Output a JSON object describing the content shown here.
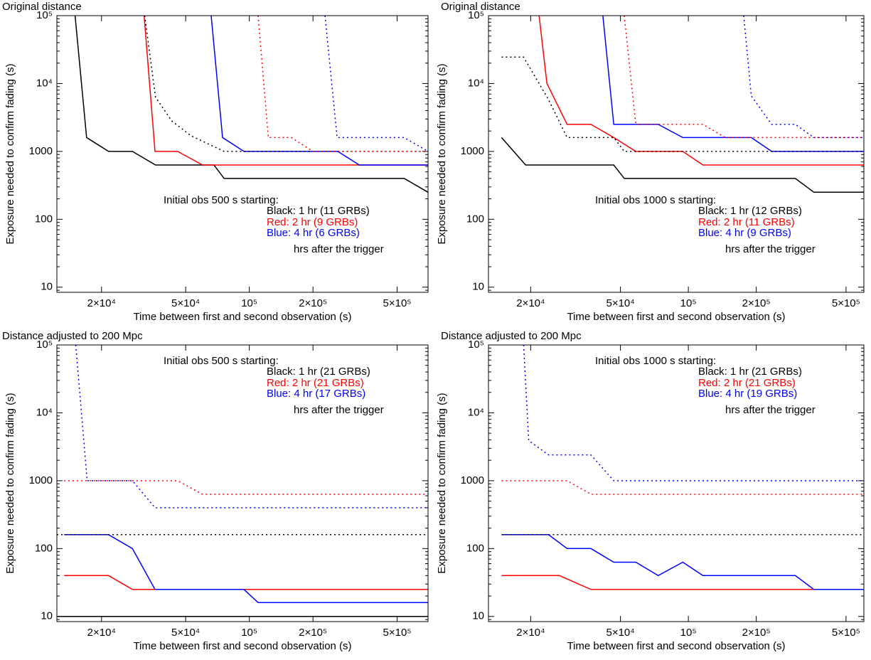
{
  "chart_data": [
    {
      "type": "line",
      "title": "Original distance",
      "xlabel": "Time between first and second observation (s)",
      "ylabel": "Exposure needed to confirm fading (s)",
      "log_x": true,
      "log_y": true,
      "xlim": [
        12300,
        700000
      ],
      "ylim": [
        8.4,
        100000
      ],
      "xticks": [
        {
          "value": 20000,
          "label": "2×10⁴"
        },
        {
          "value": 50000,
          "label": "5×10⁴"
        },
        {
          "value": 100000,
          "label": "10⁵"
        },
        {
          "value": 200000,
          "label": "2×10⁵"
        },
        {
          "value": 500000,
          "label": "5×10⁵"
        }
      ],
      "yticks": [
        10,
        100,
        1000,
        {
          "value": 10000,
          "label": "10⁴"
        },
        {
          "value": 100000,
          "label": "10⁵"
        }
      ],
      "annotation_position": "lower",
      "annotations": [
        {
          "text": "Initial obs 500 s starting:",
          "color": "#000000"
        },
        {
          "text": "Black: 1 hr (11 GRBs)",
          "color": "#000000"
        },
        {
          "text": "Red: 2 hr (9 GRBs)",
          "color": "#ff0000"
        },
        {
          "text": "Blue: 4 hr (6 GRBs)",
          "color": "#0000ff"
        },
        {
          "text": "hrs after the trigger",
          "color": "#000000"
        }
      ],
      "series": [
        {
          "color": "#000000",
          "style": "solid",
          "x": [
            15000,
            17000,
            21600,
            28000,
            36000,
            68000,
            76000,
            540000,
            700000
          ],
          "values": [
            100000,
            1600,
            1000,
            1000,
            630,
            630,
            400,
            400,
            250
          ]
        },
        {
          "color": "#ff0000",
          "style": "solid",
          "x": [
            31800,
            35800,
            45800,
            60100,
            700000
          ],
          "values": [
            100000,
            1000,
            1000,
            630,
            630
          ]
        },
        {
          "color": "#0000ff",
          "style": "solid",
          "x": [
            66000,
            74700,
            94300,
            262000,
            331000,
            700000
          ],
          "values": [
            100000,
            1600,
            1000,
            1000,
            630,
            630
          ]
        },
        {
          "color": "#000000",
          "style": "dotted",
          "x": [
            32000,
            36000,
            43000,
            53000,
            76000,
            700000
          ],
          "values": [
            100000,
            6300,
            2800,
            1700,
            1000,
            1000
          ]
        },
        {
          "color": "#ff0000",
          "style": "dotted",
          "x": [
            110000,
            123000,
            158000,
            200000,
            700000
          ],
          "values": [
            100000,
            1600,
            1600,
            1000,
            1000
          ]
        },
        {
          "color": "#0000ff",
          "style": "dotted",
          "x": [
            228000,
            260000,
            540000,
            700000
          ],
          "values": [
            100000,
            1600,
            1600,
            1000
          ]
        }
      ]
    },
    {
      "type": "line",
      "title": "Original distance",
      "xlabel": "Time between first and second observation (s)",
      "ylabel": "Exposure needed to confirm fading (s)",
      "log_x": true,
      "log_y": true,
      "xlim": [
        13000,
        600000
      ],
      "ylim": [
        8.4,
        100000
      ],
      "xticks": [
        {
          "value": 20000,
          "label": "2×10⁴"
        },
        {
          "value": 50000,
          "label": "5×10⁴"
        },
        {
          "value": 100000,
          "label": "10⁵"
        },
        {
          "value": 200000,
          "label": "2×10⁵"
        },
        {
          "value": 500000,
          "label": "5×10⁵"
        }
      ],
      "yticks": [
        10,
        100,
        1000,
        {
          "value": 10000,
          "label": "10⁴"
        },
        {
          "value": 100000,
          "label": "10⁵"
        }
      ],
      "annotation_position": "lower",
      "annotations": [
        {
          "text": "Initial obs 1000 s starting:",
          "color": "#000000"
        },
        {
          "text": "Black: 1 hr (12 GRBs)",
          "color": "#000000"
        },
        {
          "text": "Red: 2 hr (11 GRBs)",
          "color": "#ff0000"
        },
        {
          "text": "Blue: 4 hr (9 GRBs)",
          "color": "#0000ff"
        },
        {
          "text": "hrs after the trigger",
          "color": "#000000"
        }
      ],
      "series": [
        {
          "color": "#000000",
          "style": "solid",
          "x": [
            14860,
            19000,
            46700,
            52000,
            298000,
            360000,
            600000
          ],
          "values": [
            1600,
            630,
            630,
            400,
            400,
            250,
            250
          ]
        },
        {
          "color": "#ff0000",
          "style": "solid",
          "x": [
            21800,
            23600,
            29000,
            37000,
            46700,
            58500,
            94500,
            116000,
            600000
          ],
          "values": [
            100000,
            10000,
            2500,
            2500,
            1600,
            1000,
            1000,
            630,
            630
          ]
        },
        {
          "color": "#0000ff",
          "style": "solid",
          "x": [
            41800,
            46700,
            73500,
            94500,
            190000,
            234000,
            600000
          ],
          "values": [
            100000,
            2500,
            2500,
            1600,
            1600,
            1000,
            1000
          ]
        },
        {
          "color": "#000000",
          "style": "dotted",
          "x": [
            14860,
            18600,
            24000,
            29000,
            46700,
            52000,
            600000
          ],
          "values": [
            24500,
            24500,
            5800,
            1600,
            1600,
            1000,
            1000
          ]
        },
        {
          "color": "#ff0000",
          "style": "dotted",
          "x": [
            52000,
            58500,
            116000,
            146000,
            600000
          ],
          "values": [
            100000,
            2500,
            2500,
            1600,
            1600
          ]
        },
        {
          "color": "#0000ff",
          "style": "dotted",
          "x": [
            176000,
            190000,
            234000,
            298000,
            360000,
            600000
          ],
          "values": [
            100000,
            6600,
            2500,
            2500,
            1600,
            1600
          ]
        }
      ]
    },
    {
      "type": "line",
      "title": "Distance adjusted to 200 Mpc",
      "xlabel": "Time between first and second observation (s)",
      "ylabel": "Exposure needed to confirm fading (s)",
      "log_x": true,
      "log_y": true,
      "xlim": [
        12300,
        700000
      ],
      "ylim": [
        8.4,
        100000
      ],
      "xticks": [
        {
          "value": 20000,
          "label": "2×10⁴"
        },
        {
          "value": 50000,
          "label": "5×10⁴"
        },
        {
          "value": 100000,
          "label": "10⁵"
        },
        {
          "value": 200000,
          "label": "2×10⁵"
        },
        {
          "value": 500000,
          "label": "5×10⁵"
        }
      ],
      "yticks": [
        10,
        100,
        1000,
        {
          "value": 10000,
          "label": "10⁴"
        },
        {
          "value": 100000,
          "label": "10⁵"
        }
      ],
      "annotation_position": "upper",
      "annotations": [
        {
          "text": "Initial obs 500 s starting:",
          "color": "#000000"
        },
        {
          "text": "Black: 1 hr (21 GRBs)",
          "color": "#000000"
        },
        {
          "text": "Red: 2 hr (21 GRBs)",
          "color": "#ff0000"
        },
        {
          "text": "Blue: 4 hr (17 GRBs)",
          "color": "#0000ff"
        },
        {
          "text": "hrs after the trigger",
          "color": "#000000"
        }
      ],
      "series": [
        {
          "color": "#000000",
          "style": "solid",
          "x": [
            12300,
            700000
          ],
          "values": [
            10,
            10
          ]
        },
        {
          "color": "#ff0000",
          "style": "solid",
          "x": [
            13300,
            21600,
            28000,
            700000
          ],
          "values": [
            40,
            40,
            25,
            25
          ]
        },
        {
          "color": "#0000ff",
          "style": "solid",
          "x": [
            13300,
            21600,
            28000,
            35800,
            94300,
            110000,
            700000
          ],
          "values": [
            160,
            160,
            100,
            25,
            25,
            16,
            16
          ]
        },
        {
          "color": "#000000",
          "style": "dotted",
          "x": [
            12300,
            700000
          ],
          "values": [
            160,
            160
          ]
        },
        {
          "color": "#ff0000",
          "style": "dotted",
          "x": [
            13300,
            45800,
            60100,
            700000
          ],
          "values": [
            1000,
            1000,
            630,
            630
          ]
        },
        {
          "color": "#0000ff",
          "style": "dotted",
          "x": [
            15100,
            17100,
            28000,
            35800,
            700000
          ],
          "values": [
            100000,
            1000,
            1000,
            400,
            400
          ]
        }
      ]
    },
    {
      "type": "line",
      "title": "Distance adjusted to 200 Mpc",
      "xlabel": "Time between first and second observation (s)",
      "ylabel": "Exposure needed to confirm fading (s)",
      "log_x": true,
      "log_y": true,
      "xlim": [
        13000,
        600000
      ],
      "ylim": [
        8.4,
        100000
      ],
      "xticks": [
        {
          "value": 20000,
          "label": "2×10⁴"
        },
        {
          "value": 50000,
          "label": "5×10⁴"
        },
        {
          "value": 100000,
          "label": "10⁵"
        },
        {
          "value": 200000,
          "label": "2×10⁵"
        },
        {
          "value": 500000,
          "label": "5×10⁵"
        }
      ],
      "yticks": [
        10,
        100,
        1000,
        {
          "value": 10000,
          "label": "10⁴"
        },
        {
          "value": 100000,
          "label": "10⁵"
        }
      ],
      "annotation_position": "upper",
      "annotations": [
        {
          "text": "Initial obs 1000 s starting:",
          "color": "#000000"
        },
        {
          "text": "Black: 1 hr (21 GRBs)",
          "color": "#000000"
        },
        {
          "text": "Red: 2 hr (21 GRBs)",
          "color": "#ff0000"
        },
        {
          "text": "Blue: 4 hr (19 GRBs)",
          "color": "#0000ff"
        },
        {
          "text": "hrs after the trigger",
          "color": "#000000"
        }
      ],
      "series": [
        {
          "color": "#ff0000",
          "style": "solid",
          "x": [
            14860,
            26800,
            37000,
            600000
          ],
          "values": [
            40,
            40,
            25,
            25
          ]
        },
        {
          "color": "#0000ff",
          "style": "solid",
          "x": [
            14860,
            24000,
            29000,
            37000,
            46700,
            58500,
            73500,
            94500,
            116000,
            298000,
            360000,
            600000
          ],
          "values": [
            160,
            160,
            100,
            100,
            63,
            63,
            40,
            63,
            40,
            40,
            25,
            25
          ]
        },
        {
          "color": "#000000",
          "style": "dotted",
          "x": [
            14860,
            600000
          ],
          "values": [
            160,
            160
          ]
        },
        {
          "color": "#ff0000",
          "style": "dotted",
          "x": [
            14860,
            29000,
            37000,
            600000
          ],
          "values": [
            1000,
            1000,
            630,
            630
          ]
        },
        {
          "color": "#0000ff",
          "style": "dotted",
          "x": [
            18600,
            19600,
            24000,
            37000,
            46700,
            600000
          ],
          "values": [
            100000,
            3900,
            2400,
            2400,
            1000,
            1000
          ]
        }
      ]
    }
  ]
}
